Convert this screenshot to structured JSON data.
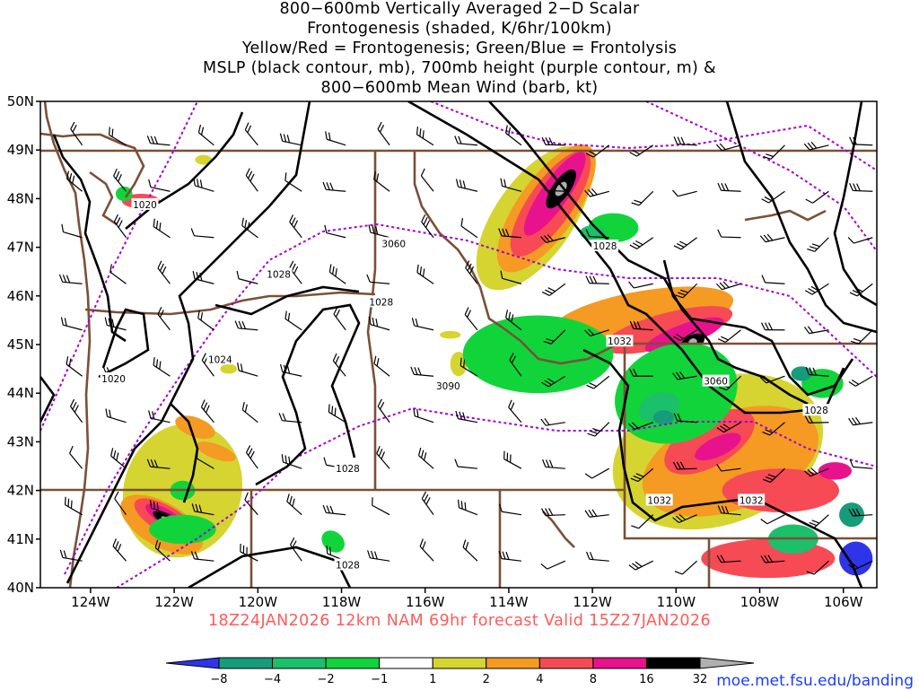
{
  "title": {
    "lines": [
      "800−600mb Vertically Averaged 2−D Scalar",
      "Frontogenesis (shaded, K/6hr/100km)",
      "Yellow/Red = Frontogenesis;  Green/Blue = Frontolysis",
      "MSLP (black contour, mb), 700mb height (purple contour, m) &",
      "800−600mb Mean Wind (barb, kt)"
    ]
  },
  "valid_line": "18Z24JAN2026 12km NAM 69hr forecast Valid 15Z27JAN2026",
  "credit": "moe.met.fsu.edu/banding",
  "chart_data": {
    "type": "heatmap",
    "x_range": [
      -125.2,
      -105.2
    ],
    "y_range": [
      40,
      50
    ],
    "x_ticks": [
      {
        "value": -124,
        "label": "124W"
      },
      {
        "value": -122,
        "label": "122W"
      },
      {
        "value": -120,
        "label": "120W"
      },
      {
        "value": -118,
        "label": "118W"
      },
      {
        "value": -116,
        "label": "116W"
      },
      {
        "value": -114,
        "label": "114W"
      },
      {
        "value": -112,
        "label": "112W"
      },
      {
        "value": -110,
        "label": "110W"
      },
      {
        "value": -108,
        "label": "108W"
      },
      {
        "value": -106,
        "label": "106W"
      }
    ],
    "y_ticks": [
      {
        "value": 40,
        "label": "40N"
      },
      {
        "value": 41,
        "label": "41N"
      },
      {
        "value": 42,
        "label": "42N"
      },
      {
        "value": 43,
        "label": "43N"
      },
      {
        "value": 44,
        "label": "44N"
      },
      {
        "value": 45,
        "label": "45N"
      },
      {
        "value": 46,
        "label": "46N"
      },
      {
        "value": 47,
        "label": "47N"
      },
      {
        "value": 48,
        "label": "48N"
      },
      {
        "value": 49,
        "label": "49N"
      },
      {
        "value": 50,
        "label": "50N"
      }
    ],
    "colorbar": {
      "labels": [
        "−8",
        "−4",
        "−2",
        "−1",
        "1",
        "2",
        "4",
        "8",
        "16",
        "32"
      ],
      "colors": [
        "#2f34e8",
        "#169c7a",
        "#1cbf6a",
        "#11d43a",
        "#ffffff",
        "#d6d431",
        "#f59a22",
        "#f64a55",
        "#e8128d",
        "#000000",
        "#b0b0b0"
      ]
    },
    "mslp_labels": [
      {
        "text": "1020",
        "lon": -122.7,
        "lat": 47.88
      },
      {
        "text": "1028",
        "lon": -119.5,
        "lat": 46.45
      },
      {
        "text": "1028",
        "lon": -117.05,
        "lat": 45.88
      },
      {
        "text": "1020",
        "lon": -123.45,
        "lat": 44.3
      },
      {
        "text": "1024",
        "lon": -120.9,
        "lat": 44.7
      },
      {
        "text": "1028",
        "lon": -117.85,
        "lat": 42.45
      },
      {
        "text": "1028",
        "lon": -117.85,
        "lat": 40.47
      },
      {
        "text": "1028",
        "lon": -111.7,
        "lat": 47.03
      },
      {
        "text": "1032",
        "lon": -111.35,
        "lat": 45.07
      },
      {
        "text": "1032",
        "lon": -110.4,
        "lat": 41.8
      },
      {
        "text": "1032",
        "lon": -108.2,
        "lat": 41.8
      },
      {
        "text": "1028",
        "lon": -106.65,
        "lat": 43.65
      }
    ],
    "height_labels": [
      {
        "text": "3060",
        "lon": -116.75,
        "lat": 47.08
      },
      {
        "text": "3090",
        "lon": -115.45,
        "lat": 44.15
      },
      {
        "text": "3060",
        "lon": -109.05,
        "lat": 44.25
      }
    ],
    "shaded_areas": [
      {
        "class": 32,
        "lon": -112.75,
        "lat": 48.2,
        "rx": 0.55,
        "ry": 0.18,
        "rot": 55
      },
      {
        "class": 32,
        "lon": -109.6,
        "lat": 45.05,
        "rx": 0.3,
        "ry": 0.15,
        "rot": 25
      },
      {
        "class": 32,
        "lon": -122.2,
        "lat": 41.4,
        "rx": 0.35,
        "ry": 0.1,
        "rot": -30
      },
      {
        "class": 16,
        "lon": -112.9,
        "lat": 48.1,
        "rx": 1.2,
        "ry": 0.28,
        "rot": 55
      },
      {
        "class": 16,
        "lon": -109.8,
        "lat": 45.2,
        "rx": 1.0,
        "ry": 0.22,
        "rot": 20
      },
      {
        "class": 16,
        "lon": -109.0,
        "lat": 42.9,
        "rx": 0.6,
        "ry": 0.2,
        "rot": 25
      },
      {
        "class": 16,
        "lon": -122.2,
        "lat": 41.45,
        "rx": 0.55,
        "ry": 0.16,
        "rot": -30
      },
      {
        "class": 16,
        "lon": -106.2,
        "lat": 42.4,
        "rx": 0.4,
        "ry": 0.18,
        "rot": 0
      },
      {
        "class": 8,
        "lon": -113.0,
        "lat": 47.9,
        "rx": 1.5,
        "ry": 0.45,
        "rot": 55
      },
      {
        "class": 8,
        "lon": -110.2,
        "lat": 45.3,
        "rx": 1.6,
        "ry": 0.35,
        "rot": 15
      },
      {
        "class": 8,
        "lon": -109.2,
        "lat": 43.0,
        "rx": 1.2,
        "ry": 0.5,
        "rot": 30
      },
      {
        "class": 8,
        "lon": -107.5,
        "lat": 42.0,
        "rx": 1.4,
        "ry": 0.45,
        "rot": 0
      },
      {
        "class": 8,
        "lon": -122.2,
        "lat": 41.4,
        "rx": 0.85,
        "ry": 0.28,
        "rot": -30
      },
      {
        "class": 8,
        "lon": -122.8,
        "lat": 47.95,
        "rx": 0.45,
        "ry": 0.15,
        "rot": 0
      },
      {
        "class": 8,
        "lon": -107.8,
        "lat": 40.6,
        "rx": 1.6,
        "ry": 0.4,
        "rot": 0
      },
      {
        "class": 4,
        "lon": -113.1,
        "lat": 47.8,
        "rx": 1.8,
        "ry": 0.6,
        "rot": 55
      },
      {
        "class": 4,
        "lon": -110.8,
        "lat": 45.6,
        "rx": 2.2,
        "ry": 0.5,
        "rot": 10
      },
      {
        "class": 4,
        "lon": -108.7,
        "lat": 42.6,
        "rx": 2.2,
        "ry": 1.0,
        "rot": 20
      },
      {
        "class": 4,
        "lon": -121.5,
        "lat": 43.3,
        "rx": 0.5,
        "ry": 0.2,
        "rot": -20
      },
      {
        "class": 4,
        "lon": -121.0,
        "lat": 42.8,
        "rx": 0.5,
        "ry": 0.15,
        "rot": -20
      },
      {
        "class": 4,
        "lon": -122.3,
        "lat": 41.3,
        "rx": 1.1,
        "ry": 0.45,
        "rot": -30
      },
      {
        "class": 4,
        "lon": -113.2,
        "lat": 45.3,
        "rx": 0.35,
        "ry": 0.2,
        "rot": 0
      },
      {
        "class": 2,
        "lon": -113.4,
        "lat": 47.6,
        "rx": 2.0,
        "ry": 0.8,
        "rot": 55
      },
      {
        "class": 2,
        "lon": -109.0,
        "lat": 42.8,
        "rx": 2.6,
        "ry": 1.5,
        "rot": 20
      },
      {
        "class": 2,
        "lon": -121.8,
        "lat": 42.0,
        "rx": 1.4,
        "ry": 1.4,
        "rot": -20
      },
      {
        "class": 2,
        "lon": -115.2,
        "lat": 44.6,
        "rx": 0.2,
        "ry": 0.25,
        "rot": 0
      },
      {
        "class": 2,
        "lon": -120.7,
        "lat": 44.5,
        "rx": 0.2,
        "ry": 0.1,
        "rot": 0
      },
      {
        "class": 2,
        "lon": -121.3,
        "lat": 48.8,
        "rx": 0.2,
        "ry": 0.1,
        "rot": 0
      },
      {
        "class": 2,
        "lon": -115.4,
        "lat": 45.2,
        "rx": 0.25,
        "ry": 0.08,
        "rot": 0
      },
      {
        "class": -1,
        "lon": -113.3,
        "lat": 44.8,
        "rx": 1.8,
        "ry": 0.8,
        "rot": 0
      },
      {
        "class": -1,
        "lon": -110.0,
        "lat": 44.0,
        "rx": 1.5,
        "ry": 1.0,
        "rot": 20
      },
      {
        "class": -1,
        "lon": -111.5,
        "lat": 47.4,
        "rx": 0.6,
        "ry": 0.3,
        "rot": 0
      },
      {
        "class": -1,
        "lon": -121.8,
        "lat": 41.2,
        "rx": 0.8,
        "ry": 0.3,
        "rot": 0
      },
      {
        "class": -1,
        "lon": -121.8,
        "lat": 42.0,
        "rx": 0.3,
        "ry": 0.2,
        "rot": 0
      },
      {
        "class": -1,
        "lon": -118.2,
        "lat": 40.95,
        "rx": 0.3,
        "ry": 0.2,
        "rot": -40
      },
      {
        "class": -1,
        "lon": -123.2,
        "lat": 48.1,
        "rx": 0.2,
        "ry": 0.15,
        "rot": 0
      },
      {
        "class": -1,
        "lon": -106.5,
        "lat": 44.2,
        "rx": 0.5,
        "ry": 0.3,
        "rot": 0
      },
      {
        "class": -2,
        "lon": -112.0,
        "lat": 47.3,
        "rx": 0.3,
        "ry": 0.15,
        "rot": 0
      },
      {
        "class": -2,
        "lon": -110.4,
        "lat": 43.7,
        "rx": 0.5,
        "ry": 0.3,
        "rot": 20
      },
      {
        "class": -2,
        "lon": -107.2,
        "lat": 41.0,
        "rx": 0.6,
        "ry": 0.3,
        "rot": 0
      },
      {
        "class": -4,
        "lon": -110.3,
        "lat": 43.5,
        "rx": 0.25,
        "ry": 0.15,
        "rot": 0
      },
      {
        "class": -4,
        "lon": -107.0,
        "lat": 44.4,
        "rx": 0.25,
        "ry": 0.15,
        "rot": 0
      },
      {
        "class": -4,
        "lon": -105.8,
        "lat": 41.5,
        "rx": 0.3,
        "ry": 0.25,
        "rot": 0
      },
      {
        "class": -8,
        "lon": -105.7,
        "lat": 40.6,
        "rx": 0.4,
        "ry": 0.35,
        "rot": 0
      }
    ]
  }
}
